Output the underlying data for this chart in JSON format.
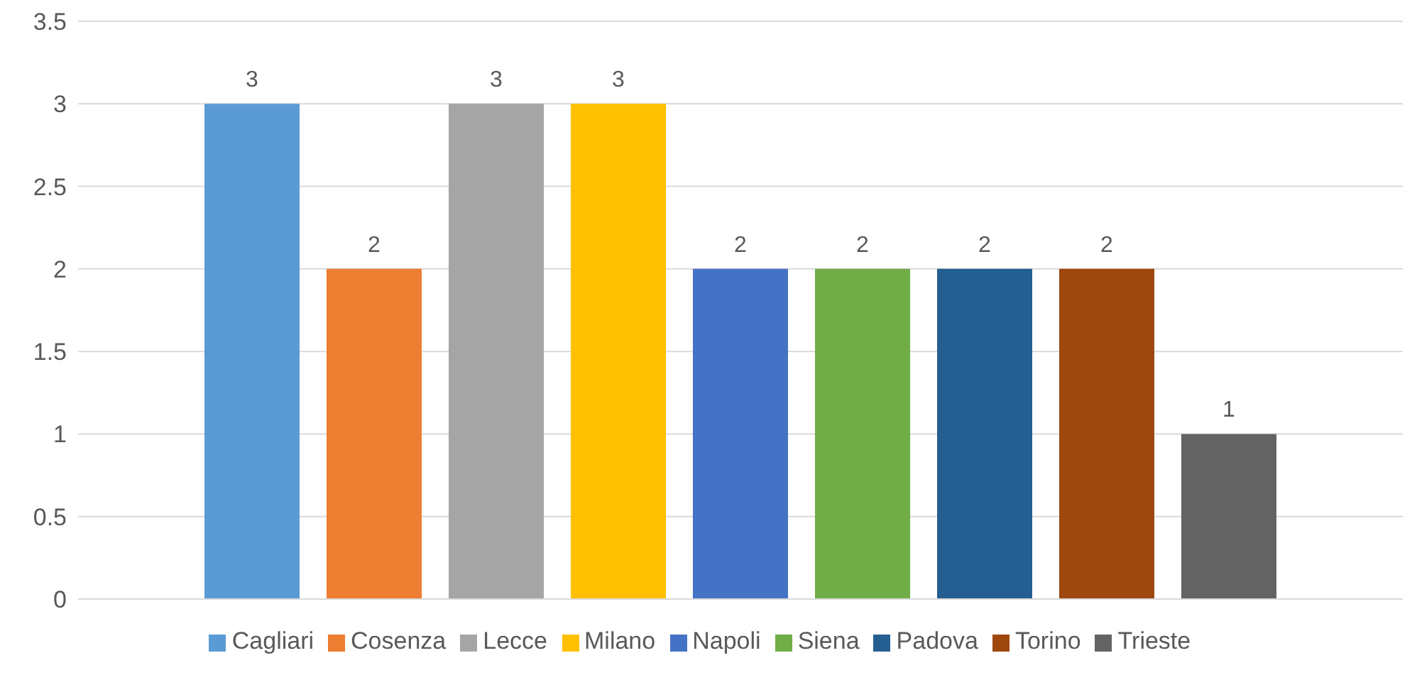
{
  "chart_data": {
    "type": "bar",
    "categories": [
      null
    ],
    "series": [
      {
        "name": "Cagliari",
        "color": "#5b9bd5",
        "values": [
          3
        ]
      },
      {
        "name": "Cosenza",
        "color": "#ed7d31",
        "values": [
          2
        ]
      },
      {
        "name": "Lecce",
        "color": "#a5a5a5",
        "values": [
          3
        ]
      },
      {
        "name": "Milano",
        "color": "#ffc000",
        "values": [
          3
        ]
      },
      {
        "name": "Napoli",
        "color": "#4472c4",
        "values": [
          2
        ]
      },
      {
        "name": "Siena",
        "color": "#70ad47",
        "values": [
          2
        ]
      },
      {
        "name": "Padova",
        "color": "#255e91",
        "values": [
          2
        ]
      },
      {
        "name": "Torino",
        "color": "#9e480e",
        "values": [
          2
        ]
      },
      {
        "name": "Trieste",
        "color": "#636363",
        "values": [
          1
        ]
      }
    ],
    "ylim": [
      0,
      3.5
    ],
    "yticks": [
      0,
      0.5,
      1,
      1.5,
      2,
      2.5,
      3,
      3.5
    ],
    "grid": "y",
    "legend": "bottom",
    "data_labels": true
  }
}
